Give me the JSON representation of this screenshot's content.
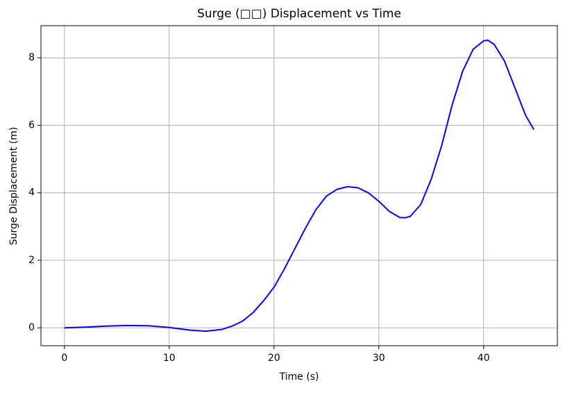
{
  "chart_data": {
    "type": "line",
    "title": "Surge (□□) Displacement vs Time",
    "xlabel": "Time (s)",
    "ylabel": "Surge Displacement (m)",
    "x": [
      0,
      2,
      4,
      6,
      8,
      10,
      12,
      13.5,
      15,
      16,
      17,
      18,
      19,
      20,
      21,
      22,
      23,
      24,
      25,
      26,
      27,
      28,
      29,
      30,
      31,
      32,
      32.5,
      33,
      34,
      35,
      36,
      37,
      38,
      39,
      40,
      40.4,
      41,
      42,
      43,
      44,
      44.8
    ],
    "series": [
      {
        "name": "Surge",
        "color": "#0000ff",
        "values": [
          0,
          0.02,
          0.05,
          0.07,
          0.06,
          0.01,
          -0.07,
          -0.1,
          -0.05,
          0.05,
          0.2,
          0.45,
          0.8,
          1.2,
          1.75,
          2.35,
          2.95,
          3.5,
          3.9,
          4.1,
          4.18,
          4.15,
          4.0,
          3.75,
          3.45,
          3.27,
          3.26,
          3.3,
          3.65,
          4.4,
          5.4,
          6.6,
          7.6,
          8.25,
          8.5,
          8.52,
          8.4,
          7.9,
          7.1,
          6.3,
          5.87
        ]
      }
    ],
    "xlim": [
      -2.24,
      47.04
    ],
    "ylim": [
      -0.53,
      8.95
    ],
    "xticks": [
      0,
      10,
      20,
      30,
      40
    ],
    "yticks": [
      0,
      2,
      4,
      6,
      8
    ],
    "grid": true
  }
}
